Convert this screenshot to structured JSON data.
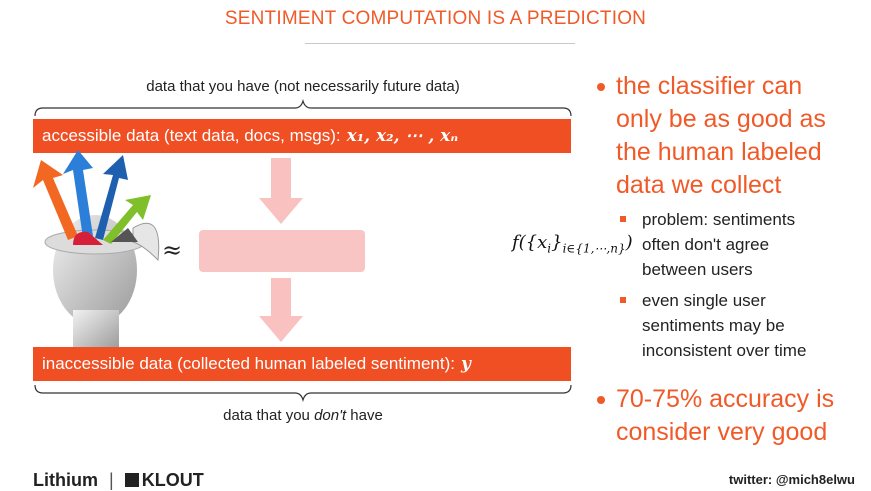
{
  "slide": {
    "title": "SENTIMENT COMPUTATION IS A PREDICTION"
  },
  "diagram": {
    "top_brace_label": "data that you have (not necessarily future data)",
    "accessible_band_text": "accessible data (text data, docs, msgs):",
    "accessible_band_math": "x₁, x₂, ⋯ , xₙ",
    "approx_symbol": "≈",
    "formula_main": "f({x",
    "formula_i": "i",
    "formula_close": "}",
    "formula_sub": "i∈{1,⋯,n}",
    "formula_end": ")",
    "inaccessible_band_text": "inaccessible data (collected human labeled sentiment):",
    "inaccessible_band_math": "y",
    "bottom_brace_label_pre": "data that you ",
    "bottom_brace_label_em": "don't",
    "bottom_brace_label_post": " have"
  },
  "bullets": {
    "main1_lines": [
      "the classifier can",
      "only be as good as",
      "the human labeled",
      "data we collect"
    ],
    "sub1_lines": [
      "problem: sentiments",
      "often don't agree",
      "between users"
    ],
    "sub2_lines": [
      "even single user",
      "sentiments may be",
      "inconsistent over time"
    ],
    "main2_lines": [
      "70-75% accuracy is",
      "consider very good"
    ]
  },
  "footer": {
    "logo_left": "Lithium",
    "logo_sep": "|",
    "logo_right": "KLOUT",
    "twitter": "twitter: @mich8elwu"
  },
  "colors": {
    "accent": "#f05a28",
    "band": "#f04e23",
    "arrow_pink": "#f9c2c1"
  }
}
